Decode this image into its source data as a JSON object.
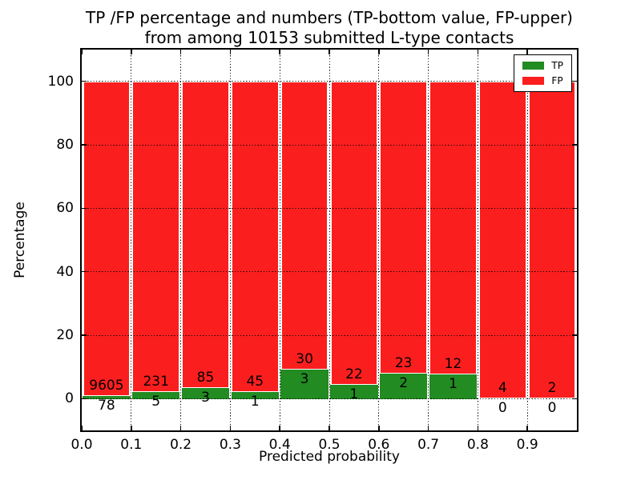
{
  "chart_data": {
    "type": "bar",
    "subtype": "stacked-percentage-histogram",
    "title_line1": "TP /FP percentage and numbers (TP-bottom value, FP-upper)",
    "title_line2": "from among 10153 submitted L-type contacts",
    "xlabel": "Predicted probability",
    "ylabel": "Percentage",
    "xlim": [
      0.0,
      1.0
    ],
    "ylim": [
      -10,
      110
    ],
    "xticks": [
      "0.0",
      "0.1",
      "0.2",
      "0.3",
      "0.4",
      "0.5",
      "0.6",
      "0.7",
      "0.8",
      "0.9"
    ],
    "yticks": [
      0,
      20,
      40,
      60,
      80,
      100
    ],
    "grid": "dotted-black",
    "legend_position": "upper-right",
    "background_color": "#ffffff",
    "series": [
      {
        "name": "TP",
        "color": "#228b22"
      },
      {
        "name": "FP",
        "color": "#fb1e1e"
      }
    ],
    "bins": [
      {
        "x_range": [
          0.0,
          0.1
        ],
        "tp_count": 78,
        "fp_count": 9605,
        "tp_percent": 0.81,
        "fp_percent": 99.19
      },
      {
        "x_range": [
          0.1,
          0.2
        ],
        "tp_count": 5,
        "fp_count": 231,
        "tp_percent": 2.12,
        "fp_percent": 97.88
      },
      {
        "x_range": [
          0.2,
          0.3
        ],
        "tp_count": 3,
        "fp_count": 85,
        "tp_percent": 3.41,
        "fp_percent": 96.59
      },
      {
        "x_range": [
          0.3,
          0.4
        ],
        "tp_count": 1,
        "fp_count": 45,
        "tp_percent": 2.17,
        "fp_percent": 97.83
      },
      {
        "x_range": [
          0.4,
          0.5
        ],
        "tp_count": 3,
        "fp_count": 30,
        "tp_percent": 9.09,
        "fp_percent": 90.91
      },
      {
        "x_range": [
          0.5,
          0.6
        ],
        "tp_count": 1,
        "fp_count": 22,
        "tp_percent": 4.35,
        "fp_percent": 95.65
      },
      {
        "x_range": [
          0.6,
          0.7
        ],
        "tp_count": 2,
        "fp_count": 23,
        "tp_percent": 8.0,
        "fp_percent": 92.0
      },
      {
        "x_range": [
          0.7,
          0.8
        ],
        "tp_count": 1,
        "fp_count": 12,
        "tp_percent": 7.69,
        "fp_percent": 92.31
      },
      {
        "x_range": [
          0.8,
          0.9
        ],
        "tp_count": 0,
        "fp_count": 4,
        "tp_percent": 0.0,
        "fp_percent": 100.0
      },
      {
        "x_range": [
          0.9,
          1.0
        ],
        "tp_count": 0,
        "fp_count": 2,
        "tp_percent": 0.0,
        "fp_percent": 100.0
      }
    ]
  }
}
